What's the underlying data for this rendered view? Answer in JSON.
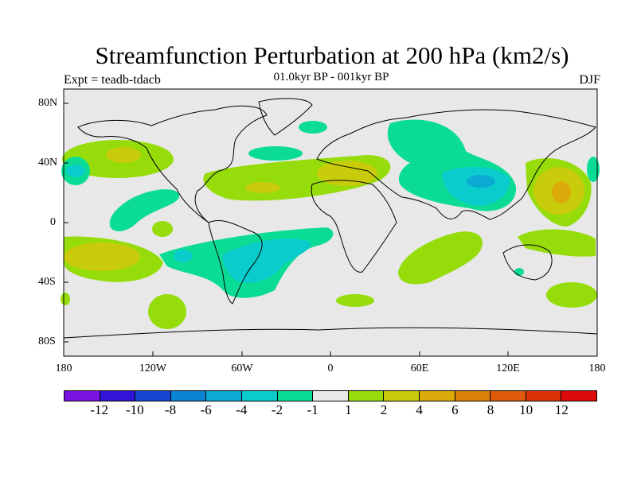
{
  "title": "Streamfunction Perturbation at 200 hPa (km2/s)",
  "subtitle": "01.0kyr BP - 001kyr BP",
  "left_label": "Expt = teadb-tdacb",
  "season": "DJF",
  "lat_labels": [
    "80N",
    "40N",
    "0",
    "40S",
    "80S"
  ],
  "lon_labels": [
    "180",
    "120W",
    "60W",
    "0",
    "60E",
    "120E",
    "180"
  ],
  "colorbar": {
    "labels": [
      "-12",
      "-10",
      "-8",
      "-6",
      "-4",
      "-2",
      "-1",
      "1",
      "2",
      "4",
      "6",
      "8",
      "10",
      "12"
    ],
    "colors": [
      "#7b14e0",
      "#3214d6",
      "#1446d2",
      "#0b84d6",
      "#0aaad2",
      "#0acccc",
      "#0adc96",
      "#e8e8e8",
      "#96dc0a",
      "#c8cc0a",
      "#dcaa0a",
      "#dc820a",
      "#dc5a0a",
      "#dc320a",
      "#dc0a0a"
    ]
  },
  "colors": {
    "ocean_land": "#e8e8e8",
    "neg1": "#0adc96",
    "neg2": "#0acccc",
    "neg3": "#0aaad2",
    "pos1": "#96dc0a",
    "pos2": "#c8cc0a",
    "pos3": "#dcaa0a"
  }
}
